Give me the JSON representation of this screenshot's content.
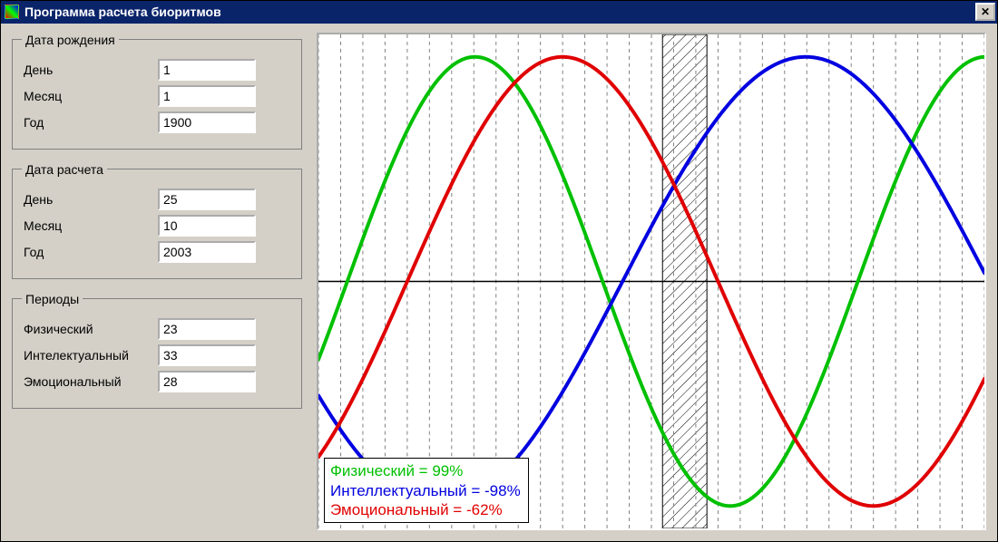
{
  "window": {
    "title": "Программа расчета биоритмов",
    "close_glyph": "✕"
  },
  "groups": {
    "birth": {
      "legend": "Дата рождения",
      "day_label": "День",
      "month_label": "Месяц",
      "year_label": "Год",
      "day_value": "1",
      "month_value": "1",
      "year_value": "1900"
    },
    "calc": {
      "legend": "Дата расчета",
      "day_label": "День",
      "month_label": "Месяц",
      "year_label": "Год",
      "day_value": "25",
      "month_value": "10",
      "year_value": "2003"
    },
    "periods": {
      "legend": "Периоды",
      "physical_label": "Физический",
      "intellectual_label": "Интелектуальный",
      "emotional_label": "Эмоциональный",
      "physical_value": "23",
      "intellectual_value": "33",
      "emotional_value": "28"
    }
  },
  "chart": {
    "width_days": 30,
    "height_range": [
      -1.1,
      1.1
    ],
    "gridline_color": "#808080",
    "gridline_dash": "4 4",
    "axis_color": "#000000",
    "background_color": "#ffffff",
    "line_width": 4,
    "hatched_band": {
      "start_day": 15.5,
      "end_day": 17.5,
      "stroke": "#000000"
    },
    "series": {
      "physical": {
        "color": "#00c000",
        "period": 23,
        "phase_day": 24.3,
        "amplitude": 1.0
      },
      "intellectual": {
        "color": "#0000e0",
        "period": 33,
        "phase_day": 13.7,
        "amplitude": 1.0
      },
      "emotional": {
        "color": "#e00000",
        "period": 28,
        "phase_day": 4.0,
        "amplitude": 1.0
      }
    }
  },
  "legend": {
    "physical": {
      "text": "Физический = 99%",
      "color": "#00c000"
    },
    "intellectual": {
      "text": "Интеллектуальный = -98%",
      "color": "#0000e0"
    },
    "emotional": {
      "text": "Эмоциональный = -62%",
      "color": "#e00000"
    }
  }
}
